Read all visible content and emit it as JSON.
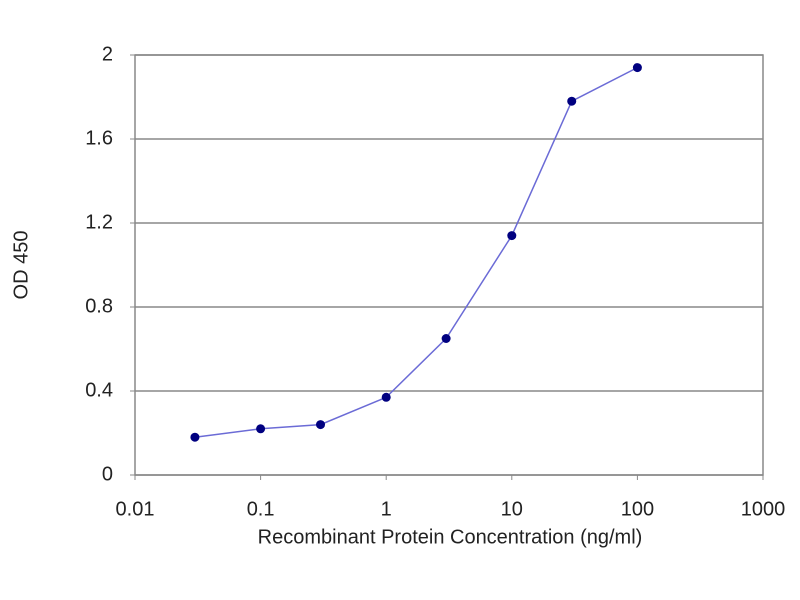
{
  "chart_data": {
    "type": "line",
    "x_label": "Recombinant Protein Concentration (ng/ml)",
    "y_label": "OD 450",
    "x": [
      0.03,
      0.1,
      0.3,
      1,
      3,
      10,
      30,
      100
    ],
    "values": [
      0.18,
      0.22,
      0.24,
      0.37,
      0.65,
      1.14,
      1.78,
      1.94
    ],
    "color": "#6b6bd6",
    "marker_color": "#000080",
    "xlog": true,
    "xlim": [
      0.01,
      1000
    ],
    "xticks": [
      0.01,
      0.1,
      1,
      10,
      100,
      1000
    ],
    "ylim": [
      0,
      2
    ],
    "yticks": [
      0,
      0.4,
      0.8,
      1.2,
      1.6,
      2
    ],
    "grid": true
  }
}
